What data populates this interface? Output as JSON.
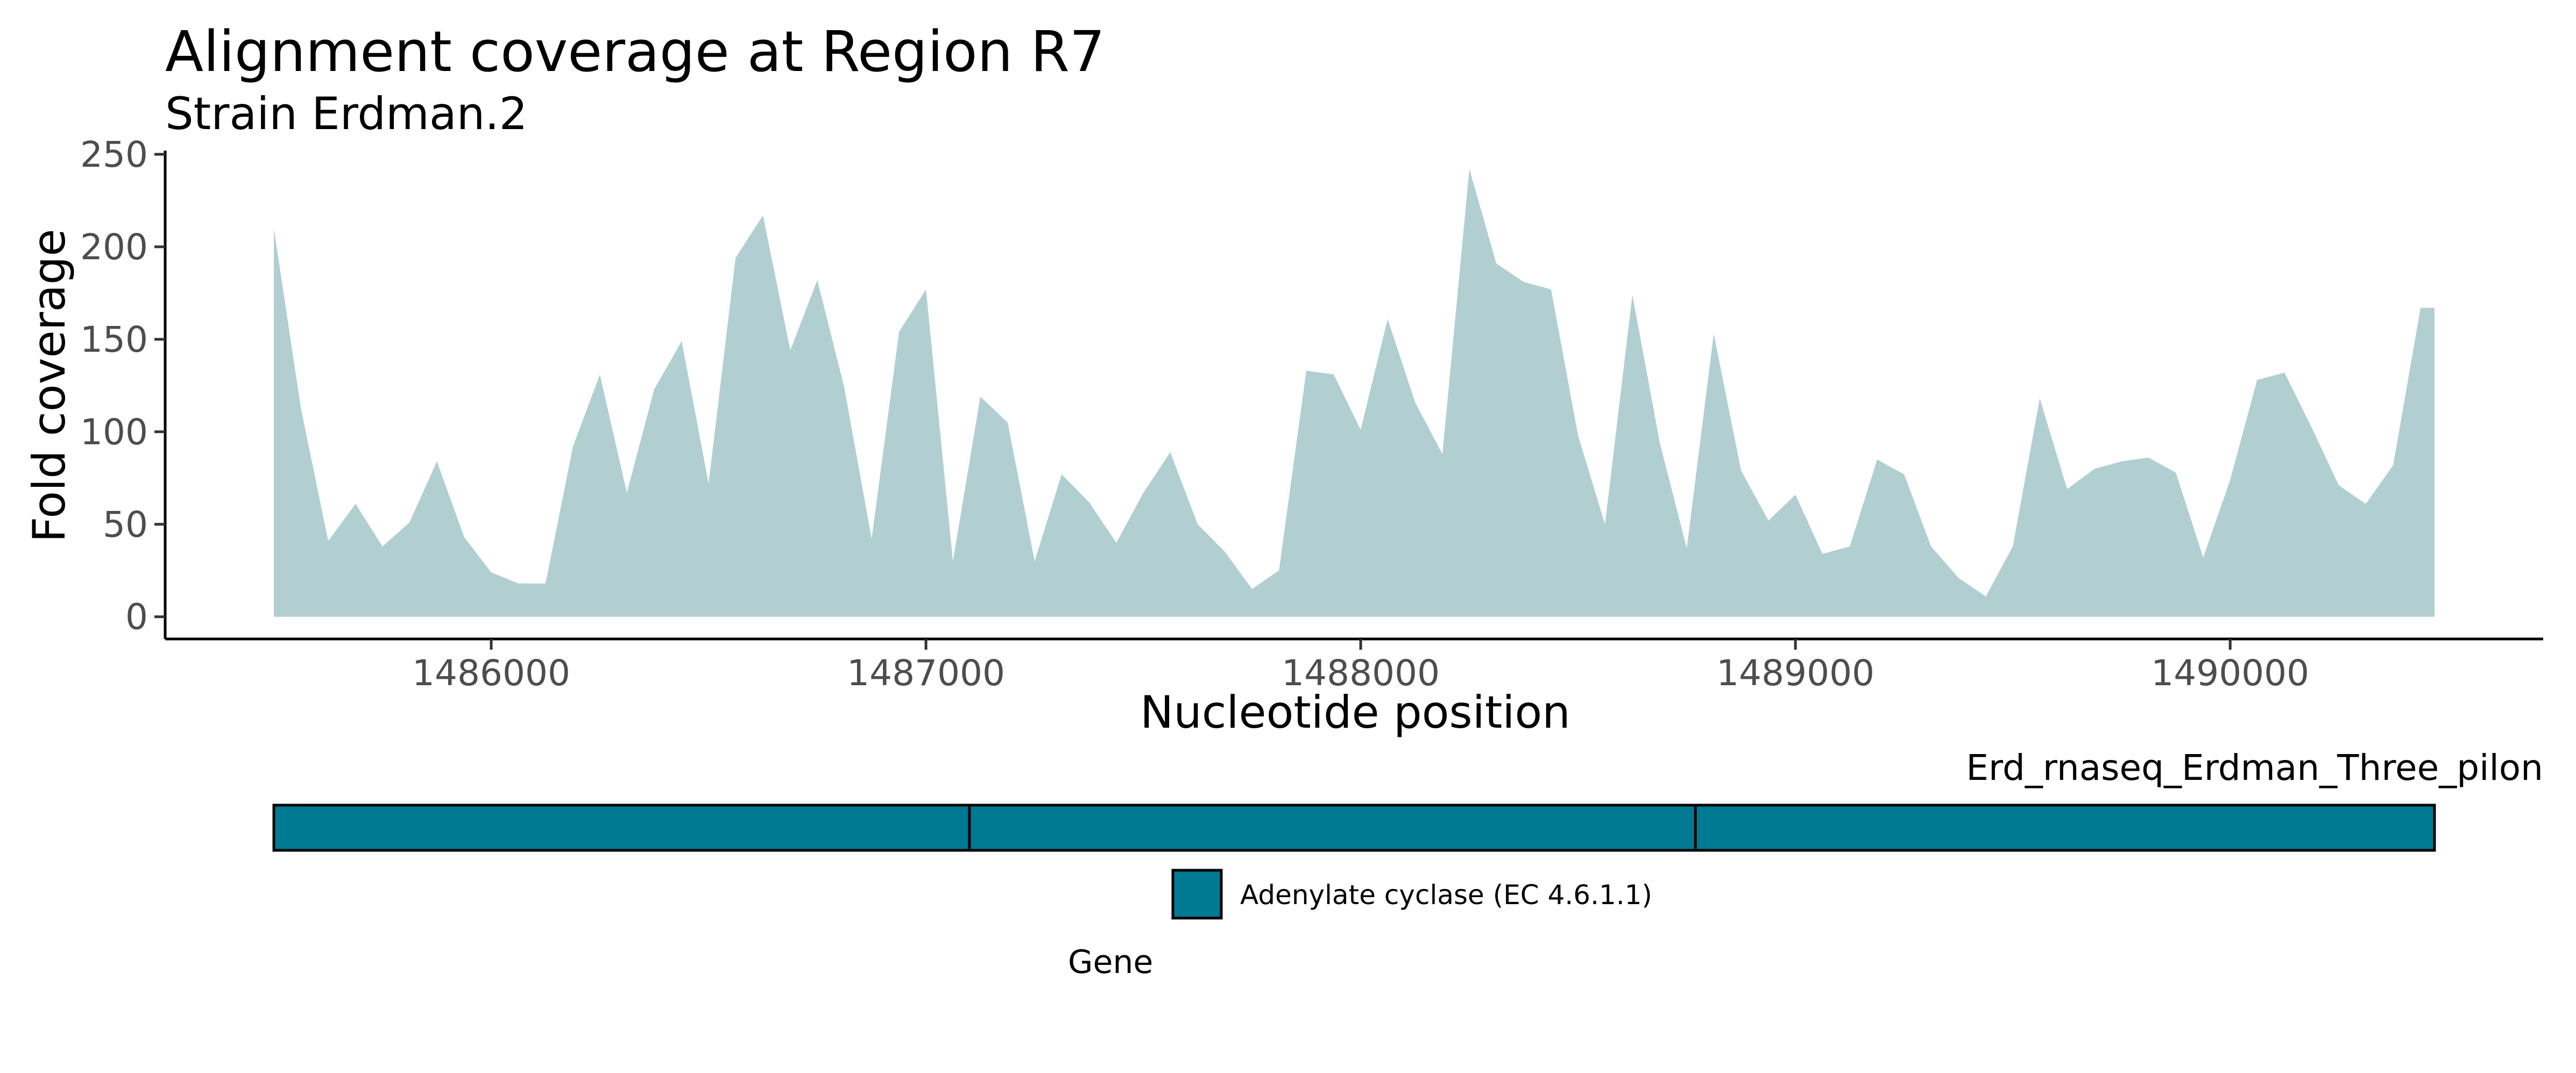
{
  "chart_data": {
    "type": "area",
    "title": "Alignment coverage at Region R7",
    "subtitle": "Strain Erdman.2",
    "xlabel": "Nucleotide position",
    "ylabel": "Fold coverage",
    "xlim": [
      1485250,
      1490720
    ],
    "ylim": [
      -12,
      252
    ],
    "x_ticks": [
      1486000,
      1487000,
      1488000,
      1489000,
      1490000
    ],
    "y_ticks": [
      0,
      50,
      100,
      150,
      200,
      250
    ],
    "grid": false,
    "fill_color": "#b1cfd1",
    "series": [
      {
        "x": [
          1485500,
          1485562,
          1485625,
          1485688,
          1485750,
          1485812,
          1485875,
          1485938,
          1486000,
          1486062,
          1486125,
          1486188,
          1486250,
          1486312,
          1486375,
          1486438,
          1486500,
          1486562,
          1486625,
          1486688,
          1486750,
          1486812,
          1486875,
          1486938,
          1487000,
          1487062,
          1487125,
          1487188,
          1487250,
          1487312,
          1487375,
          1487438,
          1487500,
          1487562,
          1487625,
          1487688,
          1487750,
          1487812,
          1487875,
          1487938,
          1488000,
          1488062,
          1488125,
          1488188,
          1488250,
          1488312,
          1488375,
          1488438,
          1488500,
          1488562,
          1488625,
          1488688,
          1488750,
          1488812,
          1488875,
          1488938,
          1489000,
          1489062,
          1489125,
          1489188,
          1489250,
          1489312,
          1489375,
          1489438,
          1489500,
          1489562,
          1489625,
          1489688,
          1489750,
          1489812,
          1489875,
          1489938,
          1490000,
          1490062,
          1490125,
          1490188,
          1490250,
          1490312,
          1490375,
          1490438,
          1490470
        ],
        "values": [
          210,
          113,
          41,
          61,
          38,
          51,
          84,
          43,
          24,
          18,
          18,
          92,
          131,
          67,
          123,
          149,
          72,
          194,
          217,
          144,
          182,
          124,
          42,
          154,
          177,
          30,
          119,
          105,
          30,
          77,
          62,
          40,
          67,
          89,
          50,
          35,
          15,
          25,
          133,
          131,
          101,
          161,
          116,
          88,
          242,
          191,
          181,
          177,
          98,
          50,
          174,
          94,
          37,
          153,
          79,
          52,
          66,
          34,
          38,
          85,
          77,
          38,
          21,
          11,
          38,
          118,
          69,
          80,
          84,
          86,
          78,
          32,
          74,
          128,
          132,
          102,
          71,
          61,
          82,
          167,
          167
        ]
      }
    ],
    "gene_track": {
      "label": "Erd_rnaseq_Erdman_Three_pilon",
      "fill_color": "#007a93",
      "segments": [
        {
          "start": 1485500,
          "end": 1487100
        },
        {
          "start": 1487100,
          "end": 1488770
        },
        {
          "start": 1488770,
          "end": 1490470
        }
      ]
    },
    "legend": {
      "title": "Gene",
      "entries": [
        {
          "label": "Adenylate cyclase (EC 4.6.1.1)",
          "color": "#007a93"
        }
      ]
    }
  }
}
